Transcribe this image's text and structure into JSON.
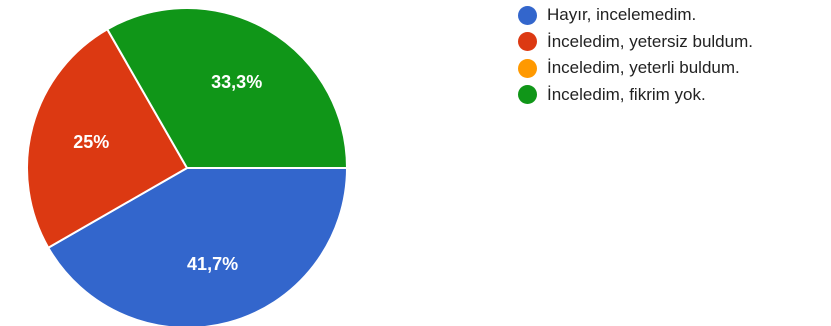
{
  "chart_data": {
    "type": "pie",
    "categories": [
      "Hayır, incelemedim.",
      "İnceledim, yetersiz buldum.",
      "İnceledim, yeterli buldum.",
      "İnceledim, fikrim yok."
    ],
    "values": [
      41.7,
      25,
      0,
      33.3
    ],
    "value_labels": [
      "41,7%",
      "25%",
      "",
      "33,3%"
    ],
    "colors": [
      "#3366cc",
      "#dc3912",
      "#ff9900",
      "#109618"
    ],
    "legend_position": "top-right",
    "start_angle": "3 o'clock",
    "direction": "clockwise"
  }
}
